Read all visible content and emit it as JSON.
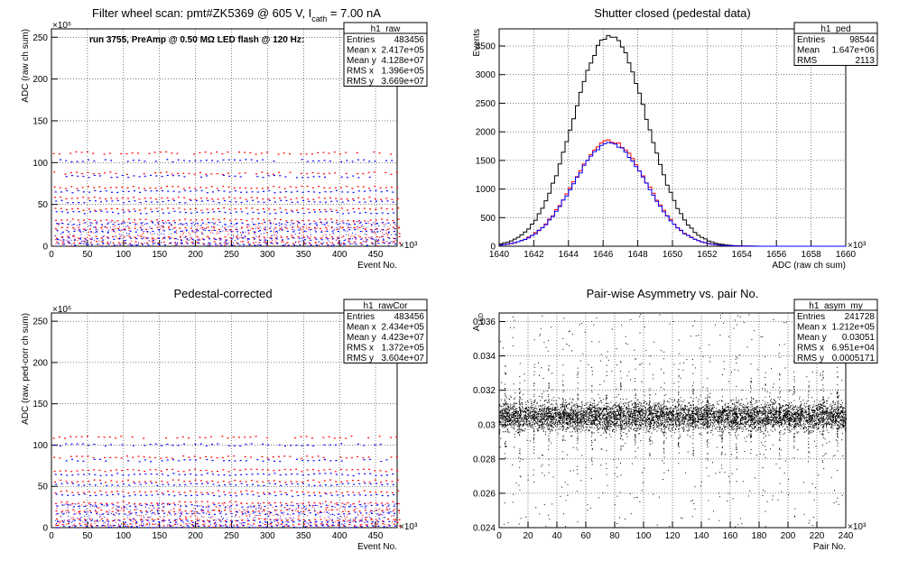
{
  "chart_data": [
    {
      "type": "scatter",
      "title": "Filter wheel scan: pmt#ZK5369 @   605 V, I",
      "title_sub": "cath",
      "title_tail": " = 7.00 nA",
      "annotation": "run 3755, PreAmp @ 0.50 MΩ LED flash @  120 Hz:",
      "xlabel": "Event No.",
      "ylabel": "ADC (raw ch sum)",
      "x_exponent": "×10³",
      "y_exponent": "×10⁶",
      "xlim": [
        0,
        480
      ],
      "ylim": [
        0,
        260
      ],
      "x_ticks": [
        "0",
        "50",
        "100",
        "150",
        "200",
        "250",
        "300",
        "350",
        "400",
        "450"
      ],
      "y_ticks": [
        "0",
        "50",
        "100",
        "150",
        "200",
        "250"
      ],
      "stats": {
        "name": "h1_raw",
        "rows": [
          [
            "Entries",
            "483456"
          ],
          [
            "Mean x",
            "2.417e+05"
          ],
          [
            "Mean y",
            "4.128e+07"
          ],
          [
            "RMS x",
            "1.396e+05"
          ],
          [
            "RMS y",
            "3.669e+07"
          ]
        ]
      },
      "series": [
        {
          "color": "#ff0000",
          "levels": [
            112,
            88,
            71,
            58,
            45,
            32,
            22,
            11,
            5
          ]
        },
        {
          "color": "#0000ff",
          "levels": [
            103,
            84,
            66,
            54,
            41,
            28,
            19,
            9,
            3
          ]
        }
      ]
    },
    {
      "type": "line",
      "title": "Shutter closed (pedestal data)",
      "xlabel": "ADC (raw ch sum)",
      "ylabel": "Events",
      "x_exponent": "×10³",
      "xlim": [
        1640,
        1660
      ],
      "ylim": [
        0,
        3800
      ],
      "x_ticks": [
        "1640",
        "1642",
        "1644",
        "1646",
        "1648",
        "1650",
        "1652",
        "1654",
        "1656",
        "1658",
        "1660"
      ],
      "y_ticks": [
        "0",
        "500",
        "1000",
        "1500",
        "2000",
        "2500",
        "3000",
        "3500"
      ],
      "stats": {
        "name": "h1_ped",
        "rows": [
          [
            "Entries",
            "98544"
          ],
          [
            "Mean",
            "1.647e+06"
          ],
          [
            "RMS",
            "2113"
          ]
        ]
      },
      "series": [
        {
          "color": "#000000",
          "peak": 3680,
          "mean": 1646.4,
          "sigma": 2.11
        },
        {
          "color": "#ff0000",
          "peak": 1840,
          "mean": 1646.4,
          "sigma": 2.11
        },
        {
          "color": "#0000ff",
          "peak": 1800,
          "mean": 1646.4,
          "sigma": 2.11
        }
      ]
    },
    {
      "type": "scatter",
      "title": "Pedestal-corrected",
      "xlabel": "Event No.",
      "ylabel": "ADC (raw, ped-corr ch sum)",
      "x_exponent": "×10³",
      "y_exponent": "×10⁶",
      "xlim": [
        0,
        480
      ],
      "ylim": [
        0,
        260
      ],
      "x_ticks": [
        "0",
        "50",
        "100",
        "150",
        "200",
        "250",
        "300",
        "350",
        "400",
        "450"
      ],
      "y_ticks": [
        "0",
        "50",
        "100",
        "150",
        "200",
        "250"
      ],
      "stats": {
        "name": "h1_rawCor",
        "rows": [
          [
            "Entries",
            "483456"
          ],
          [
            "Mean x",
            "2.434e+05"
          ],
          [
            "Mean y",
            "4.423e+07"
          ],
          [
            "RMS x",
            "1.372e+05"
          ],
          [
            "RMS y",
            "3.604e+07"
          ]
        ]
      },
      "series": [
        {
          "color": "#ff0000",
          "levels": [
            110,
            86,
            70,
            57,
            44,
            31,
            21,
            10,
            4
          ]
        },
        {
          "color": "#0000ff",
          "levels": [
            101,
            82,
            65,
            53,
            40,
            27,
            18,
            8,
            2
          ]
        }
      ]
    },
    {
      "type": "scatter",
      "title": "Pair-wise Asymmetry vs. pair No.",
      "xlabel": "Pair No.",
      "ylabel": "A",
      "ylabel_sub": "LED",
      "x_exponent": "×10³",
      "xlim": [
        0,
        240
      ],
      "ylim": [
        0.024,
        0.0365
      ],
      "x_ticks": [
        "0",
        "20",
        "40",
        "60",
        "80",
        "100",
        "120",
        "140",
        "160",
        "180",
        "200",
        "220",
        "240"
      ],
      "y_ticks": [
        "0.024",
        "0.026",
        "0.028",
        "0.03",
        "0.032",
        "0.034",
        "0.036"
      ],
      "stats": {
        "name": "h1_asym_my",
        "rows": [
          [
            "Entries",
            "241728"
          ],
          [
            "Mean x",
            "1.212e+05"
          ],
          [
            "Mean y",
            "0.03051"
          ],
          [
            "RMS x",
            "6.951e+04"
          ],
          [
            "RMS y",
            "0.0005171"
          ]
        ]
      },
      "series": [
        {
          "color": "#000000",
          "center": 0.0305,
          "band": 0.0004
        }
      ]
    }
  ]
}
